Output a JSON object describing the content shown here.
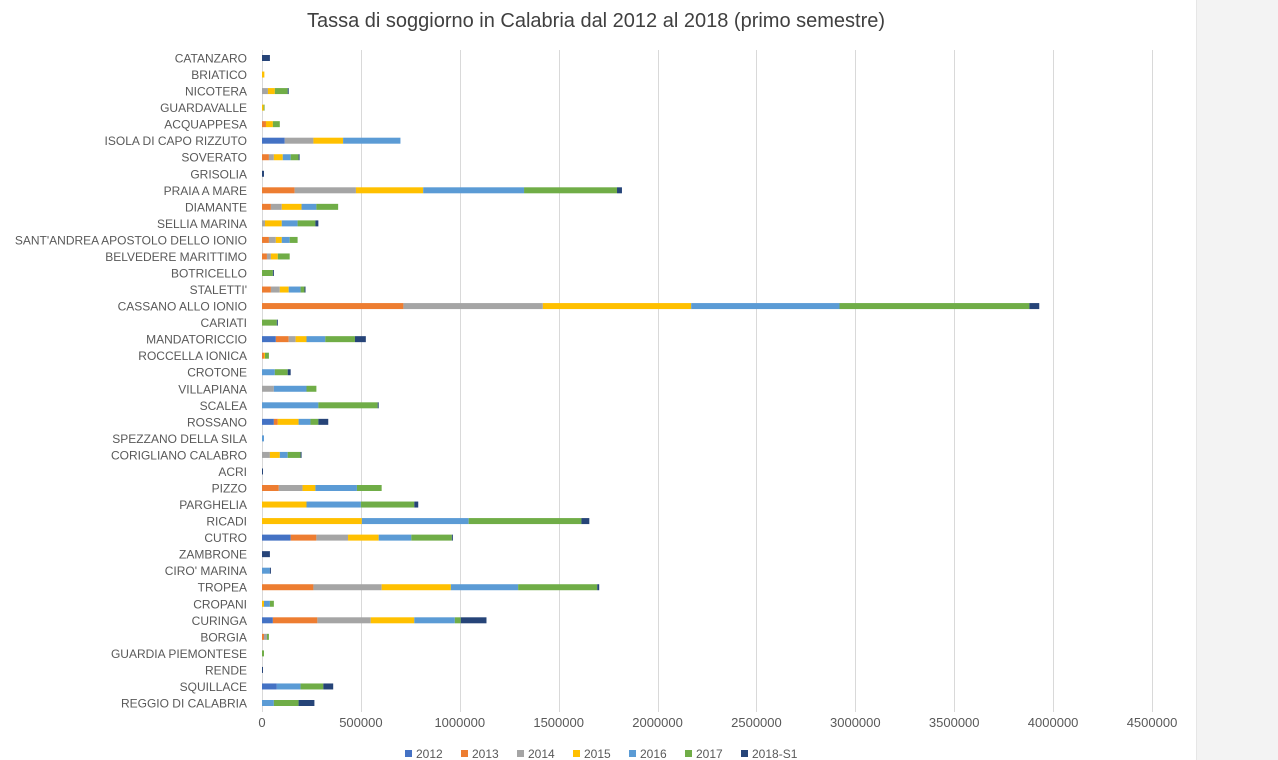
{
  "chart_data": {
    "type": "bar",
    "orientation": "horizontal",
    "stacked": true,
    "title": "Tassa di soggiorno in Calabria dal 2012 al 2018 (primo semestre)",
    "xlabel": "",
    "ylabel": "",
    "xlim": [
      0,
      4500000
    ],
    "x_ticks": [
      0,
      500000,
      1000000,
      1500000,
      2000000,
      2500000,
      3000000,
      3500000,
      4000000,
      4500000
    ],
    "x_tick_labels": [
      "0",
      "500000",
      "1000000",
      "1500000",
      "2000000",
      "2500000",
      "3000000",
      "3500000",
      "4000000",
      "4500000"
    ],
    "grid": "vertical",
    "legend_position": "bottom",
    "categories": [
      "CATANZARO",
      "BRIATICO",
      "NICOTERA",
      "GUARDAVALLE",
      "ACQUAPPESA",
      "ISOLA DI CAPO RIZZUTO",
      "SOVERATO",
      "GRISOLIA",
      "PRAIA A MARE",
      "DIAMANTE",
      "SELLIA MARINA",
      "SANT'ANDREA APOSTOLO DELLO IONIO",
      "BELVEDERE MARITTIMO",
      "BOTRICELLO",
      "STALETTI'",
      "CASSANO ALLO IONIO",
      "CARIATI",
      "MANDATORICCIO",
      "ROCCELLA IONICA",
      "CROTONE",
      "VILLAPIANA",
      "SCALEA",
      "ROSSANO",
      "SPEZZANO DELLA SILA",
      "CORIGLIANO CALABRO",
      "ACRI",
      "PIZZO",
      "PARGHELIA",
      "RICADI",
      "CUTRO",
      "ZAMBRONE",
      "CIRO' MARINA",
      "TROPEA",
      "CROPANI",
      "CURINGA",
      "BORGIA",
      "GUARDIA PIEMONTESE",
      "RENDE",
      "SQUILLACE",
      "REGGIO DI CALABRIA"
    ],
    "series": [
      {
        "name": "2012",
        "color": "#4472c4",
        "values": [
          0,
          0,
          0,
          0,
          0,
          115000,
          0,
          0,
          0,
          0,
          0,
          0,
          0,
          0,
          0,
          0,
          0,
          70000,
          0,
          0,
          0,
          0,
          60000,
          0,
          0,
          0,
          0,
          0,
          0,
          145000,
          0,
          0,
          0,
          0,
          55000,
          0,
          0,
          0,
          75000,
          0
        ]
      },
      {
        "name": "2013",
        "color": "#ed7d31",
        "values": [
          0,
          0,
          0,
          0,
          20000,
          0,
          35000,
          0,
          165000,
          45000,
          0,
          35000,
          25000,
          0,
          45000,
          715000,
          0,
          65000,
          10000,
          0,
          0,
          0,
          20000,
          0,
          0,
          0,
          85000,
          0,
          0,
          130000,
          0,
          0,
          260000,
          0,
          225000,
          10000,
          0,
          0,
          0,
          0
        ]
      },
      {
        "name": "2014",
        "color": "#a5a5a5",
        "values": [
          0,
          0,
          30000,
          0,
          0,
          145000,
          25000,
          0,
          310000,
          55000,
          15000,
          35000,
          20000,
          0,
          45000,
          705000,
          0,
          35000,
          0,
          0,
          60000,
          0,
          0,
          0,
          40000,
          0,
          120000,
          0,
          0,
          160000,
          0,
          0,
          345000,
          0,
          270000,
          15000,
          0,
          0,
          0,
          0
        ]
      },
      {
        "name": "2015",
        "color": "#ffc000",
        "values": [
          0,
          12000,
          35000,
          8000,
          35000,
          150000,
          45000,
          0,
          340000,
          100000,
          85000,
          30000,
          35000,
          0,
          45000,
          750000,
          0,
          55000,
          5000,
          0,
          0,
          0,
          105000,
          0,
          50000,
          0,
          65000,
          225000,
          505000,
          155000,
          0,
          0,
          350000,
          10000,
          220000,
          0,
          0,
          0,
          0,
          0
        ]
      },
      {
        "name": "2016",
        "color": "#5b9bd5",
        "values": [
          0,
          0,
          0,
          0,
          0,
          290000,
          40000,
          0,
          510000,
          75000,
          80000,
          40000,
          0,
          0,
          60000,
          750000,
          0,
          95000,
          0,
          65000,
          165000,
          285000,
          60000,
          10000,
          40000,
          0,
          210000,
          275000,
          540000,
          165000,
          0,
          40000,
          340000,
          30000,
          205000,
          0,
          0,
          0,
          120000,
          60000
        ]
      },
      {
        "name": "2017",
        "color": "#70ad47",
        "values": [
          0,
          0,
          65000,
          5000,
          35000,
          0,
          40000,
          0,
          470000,
          110000,
          90000,
          40000,
          60000,
          55000,
          20000,
          960000,
          75000,
          150000,
          20000,
          65000,
          50000,
          300000,
          40000,
          0,
          65000,
          0,
          125000,
          270000,
          570000,
          205000,
          0,
          0,
          400000,
          20000,
          30000,
          10000,
          10000,
          0,
          115000,
          125000
        ]
      },
      {
        "name": "2018-S1",
        "color": "#264478",
        "values": [
          40000,
          0,
          5000,
          0,
          0,
          0,
          5000,
          10000,
          25000,
          0,
          15000,
          0,
          0,
          5000,
          5000,
          50000,
          5000,
          55000,
          0,
          15000,
          0,
          5000,
          50000,
          0,
          5000,
          5000,
          0,
          20000,
          40000,
          5000,
          40000,
          5000,
          10000,
          0,
          130000,
          0,
          0,
          5000,
          50000,
          80000
        ]
      }
    ]
  }
}
